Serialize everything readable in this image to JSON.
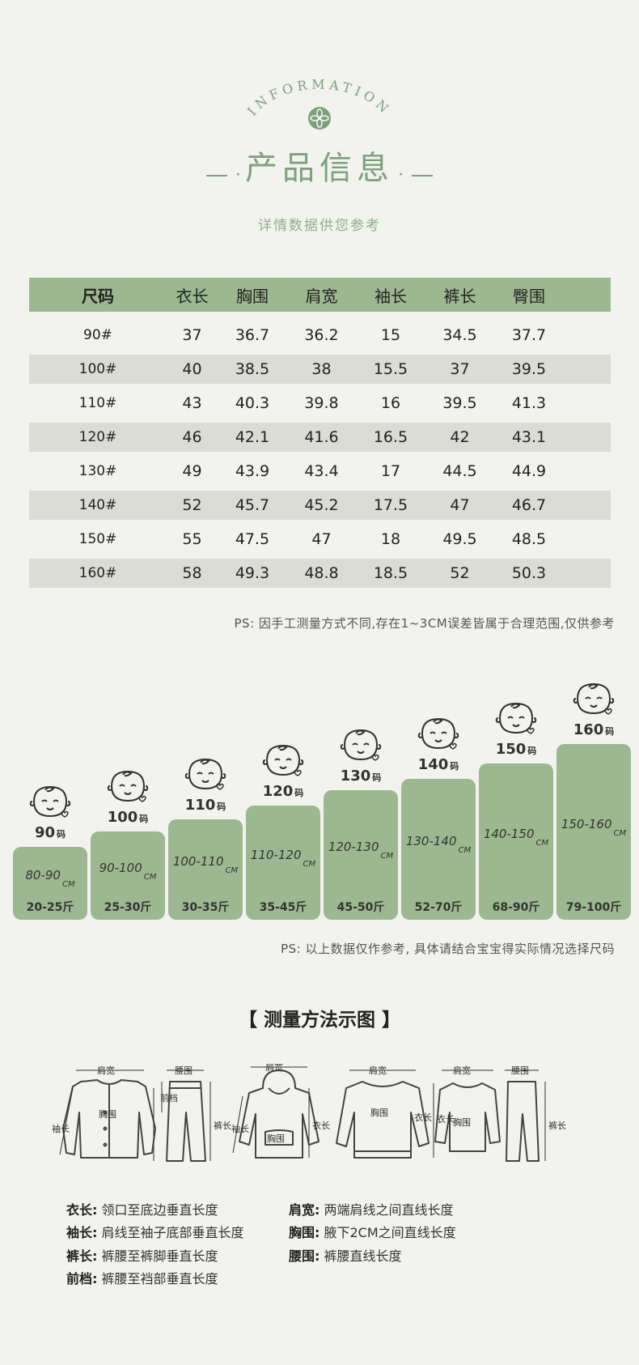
{
  "header": {
    "arc_text": "INFORMATION",
    "title": "产品信息",
    "title_dot_left": "·",
    "title_dot_right": "·",
    "subtitle": "详情数据供您参考"
  },
  "table": {
    "headers": [
      "尺码",
      "衣长",
      "胸围",
      "肩宽",
      "袖长",
      "裤长",
      "臀围"
    ],
    "rows": [
      [
        "90#",
        "37",
        "36.7",
        "36.2",
        "15",
        "34.5",
        "37.7"
      ],
      [
        "100#",
        "40",
        "38.5",
        "38",
        "15.5",
        "37",
        "39.5"
      ],
      [
        "110#",
        "43",
        "40.3",
        "39.8",
        "16",
        "39.5",
        "41.3"
      ],
      [
        "120#",
        "46",
        "42.1",
        "41.6",
        "16.5",
        "42",
        "43.1"
      ],
      [
        "130#",
        "49",
        "43.9",
        "43.4",
        "17",
        "44.5",
        "44.9"
      ],
      [
        "140#",
        "52",
        "45.7",
        "45.2",
        "17.5",
        "47",
        "46.7"
      ],
      [
        "150#",
        "55",
        "47.5",
        "47",
        "18",
        "49.5",
        "48.5"
      ],
      [
        "160#",
        "58",
        "49.3",
        "48.8",
        "18.5",
        "52",
        "50.3"
      ]
    ]
  },
  "note1": "PS: 因手工测量方式不同,存在1~3CM误差皆属于合理范围,仅供参考",
  "sizes": [
    {
      "size": "90",
      "unit": "码",
      "range": "80-90",
      "cm": "CM",
      "weight": "20-25斤"
    },
    {
      "size": "100",
      "unit": "码",
      "range": "90-100",
      "cm": "CM",
      "weight": "25-30斤"
    },
    {
      "size": "110",
      "unit": "码",
      "range": "100-110",
      "cm": "CM",
      "weight": "30-35斤"
    },
    {
      "size": "120",
      "unit": "码",
      "range": "110-120",
      "cm": "CM",
      "weight": "35-45斤"
    },
    {
      "size": "130",
      "unit": "码",
      "range": "120-130",
      "cm": "CM",
      "weight": "45-50斤"
    },
    {
      "size": "140",
      "unit": "码",
      "range": "130-140",
      "cm": "CM",
      "weight": "52-70斤"
    },
    {
      "size": "150",
      "unit": "码",
      "range": "140-150",
      "cm": "CM",
      "weight": "68-90斤"
    },
    {
      "size": "160",
      "unit": "码",
      "range": "150-160",
      "cm": "CM",
      "weight": "79-100斤"
    }
  ],
  "note2": "PS: 以上数据仅作参考, 具体请结合宝宝得实际情况选择尺码",
  "measure": {
    "title": "【 测量方法示图 】",
    "labels": {
      "shoulder": "肩宽",
      "waist": "腰围",
      "chest": "胸围",
      "sleeve": "袖长",
      "length": "衣长",
      "pants": "裤长",
      "rise": "前档"
    },
    "legend": [
      {
        "key": "衣长:",
        "text": "领口至底边垂直长度"
      },
      {
        "key": "肩宽:",
        "text": "两端肩线之间直线长度"
      },
      {
        "key": "袖长:",
        "text": "肩线至袖子底部垂直长度"
      },
      {
        "key": "胸围:",
        "text": "腋下2CM之间直线长度"
      },
      {
        "key": "裤长:",
        "text": "裤腰至裤脚垂直长度"
      },
      {
        "key": "腰围:",
        "text": "裤腰直线长度"
      },
      {
        "key": "前档:",
        "text": "裤腰至裆部垂直长度"
      }
    ]
  },
  "colors": {
    "accent": "#9cb890",
    "title": "#7ea17c",
    "row_alt": "#dcdcd6"
  }
}
